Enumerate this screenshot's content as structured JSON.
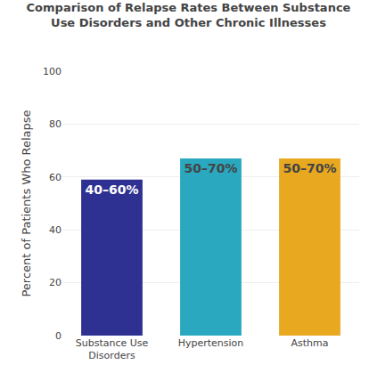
{
  "chart_data": {
    "type": "bar",
    "title": "Comparison of Relapse Rates Between Substance\nUse Disorders and Other Chronic Illnesses",
    "categories": [
      "Substance Use\nDisorders",
      "Hypertension",
      "Asthma"
    ],
    "values": [
      59,
      67,
      67
    ],
    "value_labels": [
      "40–60%",
      "50–70%",
      "50–70%"
    ],
    "data_labels": true,
    "colors": [
      "#2e3191",
      "#29a8bf",
      "#e8a820"
    ],
    "ylabel": "Percent of Patients Who Relapse",
    "ylim": [
      0,
      100
    ],
    "yticks": [
      0,
      20,
      40,
      60,
      80,
      100
    ],
    "grid": true
  }
}
